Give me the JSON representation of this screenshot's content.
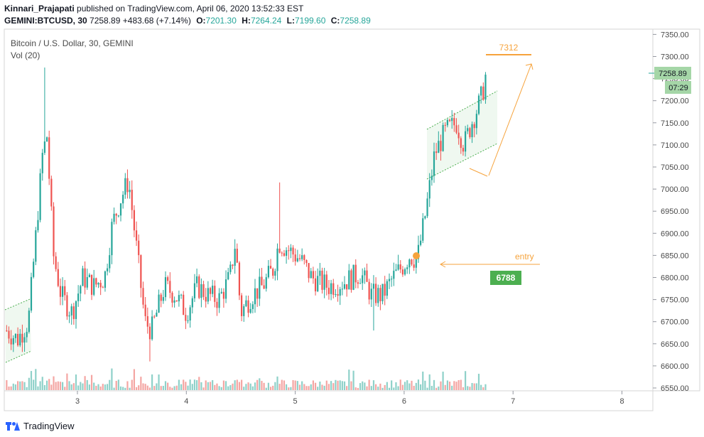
{
  "header": {
    "author": "Kinnari_Prajapati",
    "published_text": "published on TradingView.com, April 06, 2020 13:52:33 EST",
    "symbol": "GEMINI:BTCUSD, 30",
    "last": "7258.89",
    "change": "+483.68 (+7.14%)",
    "open_label": "O:",
    "open": "7201.30",
    "high_label": "H:",
    "high": "7264.24",
    "low_label": "L:",
    "low": "7199.60",
    "close_label": "C:",
    "close": "7258.89"
  },
  "legend": {
    "title": "Bitcoin / U.S. Dollar, 30, GEMINI",
    "volume": "Vol (20)"
  },
  "price_tag": {
    "price": "7258.89",
    "countdown": "07:29"
  },
  "annotations": {
    "target": "7312",
    "entry_label": "entry",
    "entry_price": "6788"
  },
  "footer": {
    "brand": "TradingView"
  },
  "colors": {
    "up": "#26a69a",
    "down": "#ef5350",
    "vol_up": "#8fd1c9",
    "vol_down": "#f4a6a3",
    "orange": "#f6a33c",
    "green_label": "#4caf50",
    "channel_fill": "#e8f5e9",
    "channel_line": "#4caf50"
  },
  "chart_data": {
    "type": "candlestick",
    "symbol": "BTCUSD",
    "interval": "30",
    "exchange": "GEMINI",
    "ylim": [
      6540,
      7360
    ],
    "y_ticks": [
      "7350.00",
      "7300.00",
      "7250.00",
      "7200.00",
      "7150.00",
      "7100.00",
      "7050.00",
      "7000.00",
      "6950.00",
      "6900.00",
      "6850.00",
      "6800.00",
      "6750.00",
      "6700.00",
      "6650.00",
      "6600.00",
      "6550.00"
    ],
    "x_ticks": [
      "3",
      "4",
      "5",
      "6",
      "7",
      "8"
    ],
    "x_day_range": [
      2.35,
      8.35
    ],
    "key_points": [
      {
        "day": 2.35,
        "close": 6680
      },
      {
        "day": 2.45,
        "close": 6660
      },
      {
        "day": 2.55,
        "close": 6700
      },
      {
        "day": 2.62,
        "close": 6900
      },
      {
        "day": 2.68,
        "close": 7080
      },
      {
        "day": 2.72,
        "close": 7120
      },
      {
        "day": 2.78,
        "close": 6850
      },
      {
        "day": 2.85,
        "close": 6760
      },
      {
        "day": 2.95,
        "close": 6720
      },
      {
        "day": 3.05,
        "close": 6800
      },
      {
        "day": 3.15,
        "close": 6780
      },
      {
        "day": 3.25,
        "close": 6800
      },
      {
        "day": 3.32,
        "close": 6920
      },
      {
        "day": 3.4,
        "close": 6980
      },
      {
        "day": 3.47,
        "close": 7020
      },
      {
        "day": 3.55,
        "close": 6850
      },
      {
        "day": 3.62,
        "close": 6700
      },
      {
        "day": 3.68,
        "close": 6680
      },
      {
        "day": 3.8,
        "close": 6780
      },
      {
        "day": 3.9,
        "close": 6760
      },
      {
        "day": 4.0,
        "close": 6720
      },
      {
        "day": 4.1,
        "close": 6780
      },
      {
        "day": 4.2,
        "close": 6760
      },
      {
        "day": 4.3,
        "close": 6750
      },
      {
        "day": 4.4,
        "close": 6800
      },
      {
        "day": 4.45,
        "close": 6880
      },
      {
        "day": 4.5,
        "close": 6720
      },
      {
        "day": 4.6,
        "close": 6760
      },
      {
        "day": 4.7,
        "close": 6780
      },
      {
        "day": 4.8,
        "close": 6820
      },
      {
        "day": 4.85,
        "close": 6880
      },
      {
        "day": 4.95,
        "close": 6860
      },
      {
        "day": 5.05,
        "close": 6840
      },
      {
        "day": 5.15,
        "close": 6800
      },
      {
        "day": 5.3,
        "close": 6780
      },
      {
        "day": 5.45,
        "close": 6790
      },
      {
        "day": 5.6,
        "close": 6810
      },
      {
        "day": 5.7,
        "close": 6760
      },
      {
        "day": 5.8,
        "close": 6760
      },
      {
        "day": 5.9,
        "close": 6800
      },
      {
        "day": 6.0,
        "close": 6830
      },
      {
        "day": 6.05,
        "close": 6850
      },
      {
        "day": 6.12,
        "close": 6840
      },
      {
        "day": 6.2,
        "close": 6950
      },
      {
        "day": 6.28,
        "close": 7080
      },
      {
        "day": 6.38,
        "close": 7130
      },
      {
        "day": 6.48,
        "close": 7150
      },
      {
        "day": 6.55,
        "close": 7100
      },
      {
        "day": 6.62,
        "close": 7150
      },
      {
        "day": 6.7,
        "close": 7200
      },
      {
        "day": 6.76,
        "close": 7258.89
      }
    ],
    "last_price": 7258.89
  }
}
